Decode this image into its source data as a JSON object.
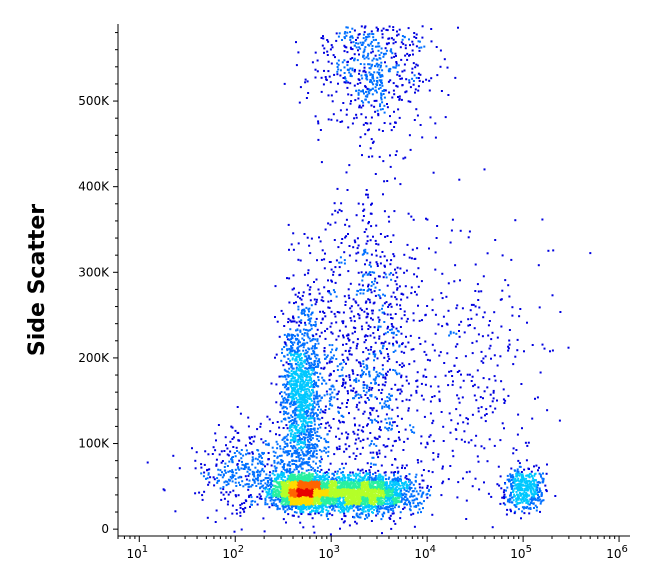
{
  "chart_data": {
    "type": "scatter",
    "title": "",
    "xlabel": "",
    "ylabel": "Side Scatter",
    "xscale": "log",
    "xlim": [
      6,
      1300000
    ],
    "ylim": [
      -8000,
      590000
    ],
    "x_ticks": [
      {
        "value": 10,
        "base": "10",
        "exp": "1"
      },
      {
        "value": 100,
        "base": "10",
        "exp": "2"
      },
      {
        "value": 1000,
        "base": "10",
        "exp": "3"
      },
      {
        "value": 10000,
        "base": "10",
        "exp": "4"
      },
      {
        "value": 100000,
        "base": "10",
        "exp": "5"
      },
      {
        "value": 1000000,
        "base": "10",
        "exp": "6"
      }
    ],
    "y_ticks": [
      {
        "value": 0,
        "label": "0"
      },
      {
        "value": 100000,
        "label": "100K"
      },
      {
        "value": 200000,
        "label": "200K"
      },
      {
        "value": 300000,
        "label": "300K"
      },
      {
        "value": 400000,
        "label": "400K"
      },
      {
        "value": 500000,
        "label": "500K"
      }
    ],
    "grid": false,
    "colormap": [
      "#0000e0",
      "#0070ff",
      "#00c8ff",
      "#28f0a0",
      "#b4ff28",
      "#ffdc00",
      "#ff6400",
      "#e80000"
    ],
    "populations": [
      {
        "x": 500,
        "y": 45000,
        "n": 2400
      },
      {
        "x": 2000,
        "y": 42000,
        "n": 2100
      },
      {
        "x": 480,
        "y": 160000,
        "n": 1300
      },
      {
        "x": 2200,
        "y": 200000,
        "n": 1100
      },
      {
        "x": 100000,
        "y": 48000,
        "n": 420
      },
      {
        "x": 30000,
        "y": 180000,
        "n": 300
      },
      {
        "x": 150,
        "y": 70000,
        "n": 500
      },
      {
        "x": 2500,
        "y": 550000,
        "n": 700
      }
    ]
  }
}
